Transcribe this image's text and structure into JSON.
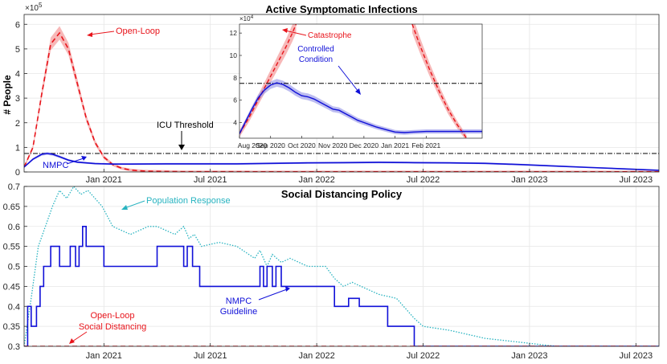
{
  "colors": {
    "open_loop": "#e8141b",
    "open_loop_band": "#f4a0a0",
    "nmpc": "#1010d8",
    "nmpc_band": "#9a9ae8",
    "population": "#27b3c0",
    "threshold": "#000000",
    "grid": "#e6e6e6"
  },
  "chart_data": [
    {
      "type": "line",
      "title": "Active Symptomatic Infections",
      "ylabel": "# People",
      "y_exponent": "×10",
      "y_exponent_power": "5",
      "ylim": [
        0,
        6.4
      ],
      "xlim_months": [
        0,
        35.8
      ],
      "x_ticks": [
        {
          "month": 4.5,
          "label": "Jan 2021"
        },
        {
          "month": 10.5,
          "label": "Jul 2021"
        },
        {
          "month": 16.5,
          "label": "Jan 2022"
        },
        {
          "month": 22.5,
          "label": "Jul 2022"
        },
        {
          "month": 28.5,
          "label": "Jan 2023"
        },
        {
          "month": 34.5,
          "label": "Jul 2023"
        }
      ],
      "y_ticks": [
        0,
        1,
        2,
        3,
        4,
        5,
        6
      ],
      "icu_threshold": 0.75,
      "annotations": {
        "open_loop": "Open-Loop",
        "nmpc": "NMPC",
        "icu": "ICU Threshold"
      },
      "series": [
        {
          "name": "Open-Loop",
          "style": "dashed",
          "x": [
            0,
            0.5,
            1,
            1.5,
            2,
            2.5,
            3,
            3.5,
            4,
            4.5,
            5,
            5.5,
            6,
            6.5,
            7,
            8,
            9,
            10,
            12,
            14,
            16,
            20,
            24,
            30,
            35.8
          ],
          "y": [
            0.2,
            1.0,
            3.2,
            5.2,
            5.65,
            5.0,
            3.6,
            2.2,
            1.2,
            0.6,
            0.3,
            0.15,
            0.08,
            0.05,
            0.03,
            0.02,
            0.01,
            0.01,
            0.01,
            0.005,
            0.005,
            0.005,
            0.005,
            0.005,
            0.005
          ]
        },
        {
          "name": "NMPC",
          "style": "solid",
          "x": [
            0,
            0.5,
            1,
            1.3,
            1.6,
            2,
            2.5,
            3,
            4,
            5,
            6,
            8,
            10,
            12,
            14,
            16,
            18,
            20,
            22,
            24,
            26,
            28,
            30,
            32,
            34,
            35.8
          ],
          "y": [
            0.2,
            0.52,
            0.72,
            0.75,
            0.72,
            0.62,
            0.48,
            0.4,
            0.34,
            0.32,
            0.32,
            0.33,
            0.33,
            0.33,
            0.35,
            0.37,
            0.38,
            0.39,
            0.38,
            0.37,
            0.35,
            0.3,
            0.24,
            0.18,
            0.12,
            0.07
          ]
        }
      ]
    },
    {
      "type": "line",
      "title": "inset",
      "y_exponent": "×10",
      "y_exponent_power": "4",
      "ylim": [
        2.6,
        12.8
      ],
      "xlim_months": [
        0,
        7.8
      ],
      "x_ticks": [
        {
          "month": 0,
          "label": "Aug 2020"
        },
        {
          "month": 1,
          "label": "Sep 2020"
        },
        {
          "month": 2,
          "label": "Oct 2020"
        },
        {
          "month": 3,
          "label": "Nov 2020"
        },
        {
          "month": 4,
          "label": "Dec 2020"
        },
        {
          "month": 5,
          "label": "Jan 2021"
        },
        {
          "month": 6,
          "label": "Feb 2021"
        }
      ],
      "y_ticks": [
        4,
        6,
        8,
        10,
        12
      ],
      "icu_threshold": 7.5,
      "annotations": {
        "catastrophe": "Catastrophe",
        "controlled_1": "Controlled",
        "controlled_2": "Condition"
      },
      "series": [
        {
          "name": "Open-Loop rise",
          "style": "dashed",
          "x": [
            0,
            0.3,
            0.6,
            0.9,
            1.2,
            1.5,
            1.7,
            1.82
          ],
          "y": [
            3.0,
            4.4,
            6.0,
            7.6,
            9.2,
            10.8,
            12.0,
            12.8
          ]
        },
        {
          "name": "Open-Loop decay",
          "style": "dashed",
          "x": [
            5.55,
            5.8,
            6.1,
            6.4,
            6.7,
            7.0,
            7.3
          ],
          "y": [
            12.8,
            10.9,
            8.8,
            6.9,
            5.2,
            3.8,
            2.6
          ]
        },
        {
          "name": "NMPC",
          "style": "solid",
          "x": [
            0,
            0.2,
            0.4,
            0.6,
            0.8,
            1.0,
            1.2,
            1.4,
            1.6,
            1.8,
            2.0,
            2.2,
            2.4,
            2.6,
            2.8,
            3.0,
            3.2,
            3.4,
            3.6,
            3.8,
            4.0,
            4.2,
            4.4,
            4.6,
            4.8,
            5.0,
            5.3,
            5.6,
            6.0,
            6.5,
            7.0,
            7.8
          ],
          "y": [
            3.0,
            4.1,
            5.2,
            6.2,
            6.9,
            7.35,
            7.55,
            7.4,
            7.1,
            6.7,
            6.4,
            6.3,
            6.1,
            5.8,
            5.5,
            5.2,
            5.1,
            4.8,
            4.5,
            4.2,
            4.0,
            3.8,
            3.6,
            3.45,
            3.3,
            3.15,
            3.1,
            3.15,
            3.2,
            3.2,
            3.2,
            3.2
          ]
        }
      ]
    },
    {
      "type": "line",
      "title": "Social Distancing Policy",
      "ylim": [
        0.3,
        0.7
      ],
      "xlim_months": [
        0,
        35.8
      ],
      "x_ticks": [
        {
          "month": 4.5,
          "label": "Jan 2021"
        },
        {
          "month": 10.5,
          "label": "Jul 2021"
        },
        {
          "month": 16.5,
          "label": "Jan 2022"
        },
        {
          "month": 22.5,
          "label": "Jul 2022"
        },
        {
          "month": 28.5,
          "label": "Jan 2023"
        },
        {
          "month": 34.5,
          "label": "Jul 2023"
        }
      ],
      "y_ticks": [
        0.3,
        0.35,
        0.4,
        0.45,
        0.5,
        0.55,
        0.6,
        0.65,
        0.7
      ],
      "annotations": {
        "population": "Population Response",
        "nmpc_1": "NMPC",
        "nmpc_2": "Guideline",
        "open_1": "Open-Loop",
        "open_2": "Social Distancing"
      },
      "series": [
        {
          "name": "Open-Loop Social Distancing",
          "style": "dashed",
          "x": [
            0,
            35.8
          ],
          "y": [
            0.3,
            0.3
          ]
        },
        {
          "name": "NMPC Guideline",
          "style": "step",
          "x": [
            0,
            0.2,
            0.2,
            0.4,
            0.4,
            0.7,
            0.7,
            0.9,
            0.9,
            1.1,
            1.1,
            1.5,
            1.5,
            2.0,
            2.0,
            2.6,
            2.6,
            2.9,
            2.9,
            3.1,
            3.1,
            3.3,
            3.3,
            3.5,
            3.5,
            4.5,
            4.5,
            7.5,
            7.5,
            9.0,
            9.0,
            9.2,
            9.2,
            9.5,
            9.5,
            9.9,
            9.9,
            13.3,
            13.3,
            13.5,
            13.5,
            13.7,
            13.7,
            14.0,
            14.0,
            14.2,
            14.2,
            14.5,
            14.5,
            14.7,
            14.7,
            14.9,
            14.9,
            17.5,
            17.5,
            18.3,
            18.3,
            18.9,
            18.9,
            20.5,
            20.5,
            22.0,
            22.0,
            35.8
          ],
          "y": [
            0.3,
            0.3,
            0.4,
            0.4,
            0.35,
            0.35,
            0.4,
            0.4,
            0.45,
            0.45,
            0.5,
            0.5,
            0.55,
            0.55,
            0.5,
            0.5,
            0.55,
            0.55,
            0.5,
            0.5,
            0.55,
            0.55,
            0.6,
            0.6,
            0.55,
            0.55,
            0.5,
            0.5,
            0.55,
            0.55,
            0.5,
            0.5,
            0.55,
            0.55,
            0.5,
            0.5,
            0.45,
            0.45,
            0.5,
            0.5,
            0.45,
            0.45,
            0.5,
            0.5,
            0.45,
            0.45,
            0.5,
            0.5,
            0.45,
            0.45,
            0.45,
            0.45,
            0.45,
            0.45,
            0.4,
            0.4,
            0.42,
            0.42,
            0.4,
            0.4,
            0.35,
            0.35,
            0.3,
            0.3
          ]
        },
        {
          "name": "Population Response",
          "style": "dotted",
          "x": [
            0,
            0.4,
            0.8,
            1.2,
            1.6,
            2.0,
            2.4,
            2.8,
            3.2,
            3.6,
            4.0,
            4.4,
            5.0,
            6.0,
            7.0,
            7.5,
            8.5,
            9.0,
            9.3,
            9.6,
            10.0,
            11.0,
            12.0,
            13.0,
            13.3,
            13.7,
            14.0,
            14.5,
            15.0,
            16.0,
            17.0,
            17.5,
            18.0,
            18.5,
            19.0,
            20.0,
            21.0,
            22.0,
            22.5,
            24.0,
            26.0,
            28.0,
            30.0,
            32.0,
            35.8
          ],
          "y": [
            0.3,
            0.42,
            0.55,
            0.6,
            0.65,
            0.69,
            0.67,
            0.7,
            0.68,
            0.69,
            0.67,
            0.65,
            0.6,
            0.58,
            0.6,
            0.6,
            0.58,
            0.6,
            0.57,
            0.58,
            0.55,
            0.56,
            0.55,
            0.52,
            0.54,
            0.5,
            0.53,
            0.51,
            0.52,
            0.5,
            0.5,
            0.47,
            0.45,
            0.46,
            0.45,
            0.43,
            0.42,
            0.37,
            0.35,
            0.34,
            0.32,
            0.31,
            0.3,
            0.3,
            0.3
          ]
        }
      ]
    }
  ]
}
